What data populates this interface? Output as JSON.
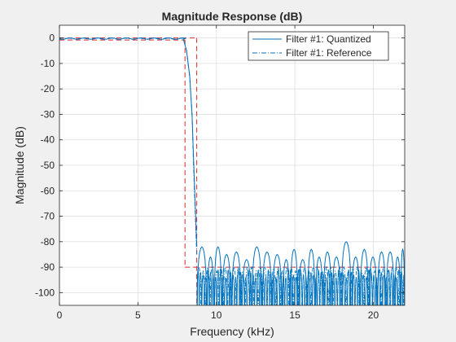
{
  "chart_data": {
    "type": "line",
    "title": "Magnitude Response (dB)",
    "xlabel": "Frequency (kHz)",
    "ylabel": "Magnitude (dB)",
    "xlim": [
      0,
      22
    ],
    "ylim": [
      -105,
      5
    ],
    "xticks": [
      0,
      5,
      10,
      15,
      20
    ],
    "yticks": [
      0,
      -10,
      -20,
      -30,
      -40,
      -50,
      -60,
      -70,
      -80,
      -90,
      -100
    ],
    "grid": true,
    "legend_position": "top-right",
    "colors": {
      "quantized": "#0072bd",
      "reference": "#0072bd",
      "mask": "#d62728",
      "grid": "#dfdfdf",
      "axes": "#262626"
    },
    "series": [
      {
        "name": "Filter #1: Quantized",
        "style": "solid",
        "passband_edge_khz": 8.0,
        "stopband_edge_khz": 8.75,
        "passband_ripple_db": 0.5,
        "transition": {
          "x": [
            7.9,
            8.1,
            8.3,
            8.45,
            8.55,
            8.65,
            8.75
          ],
          "y": [
            -0.5,
            -5,
            -15,
            -30,
            -48,
            -65,
            -82
          ]
        },
        "stopband_lobe_peaks": {
          "x": [
            9.2,
            9.6,
            10.1,
            10.6,
            11.3,
            11.9,
            12.6,
            13.2,
            13.9,
            14.5,
            14.9,
            15.5,
            16.1,
            16.5,
            17.1,
            17.6,
            18.3,
            18.9,
            19.4,
            20.0,
            20.5,
            21.1,
            21.6,
            21.9
          ],
          "y": [
            -82,
            -86,
            -82,
            -85,
            -84,
            -87,
            -82,
            -84,
            -85,
            -87,
            -83,
            -87,
            -83,
            -86,
            -84,
            -86,
            -80,
            -86,
            -83,
            -86,
            -84,
            -84,
            -86,
            -83
          ]
        }
      },
      {
        "name": "Filter #1: Reference",
        "style": "dash-dot",
        "passband_ripple_db": 0.5,
        "stopband_lobe_level_db": -90
      }
    ],
    "spec_mask": {
      "style": "dashed",
      "passband": {
        "x": [
          0,
          8.75
        ],
        "upper_db": 0,
        "lower_db": -0.8
      },
      "transition_lines_khz": [
        8.0,
        8.75
      ],
      "stopband": {
        "x": [
          8.0,
          22
        ],
        "level_db": -90
      }
    }
  }
}
